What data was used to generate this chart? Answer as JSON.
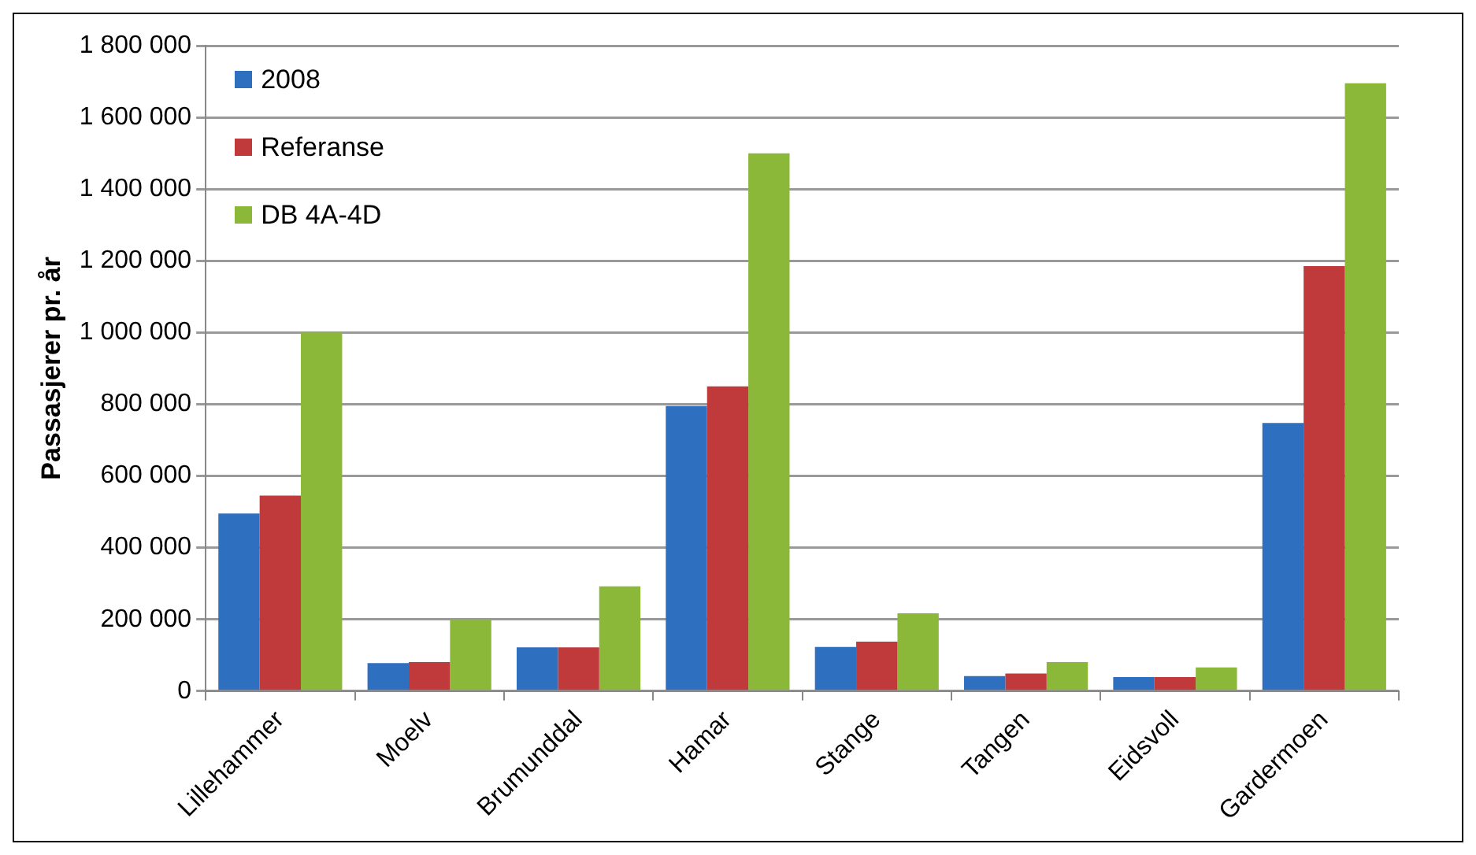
{
  "chart_data": {
    "type": "bar",
    "ylabel": "Passasjerer pr. år",
    "categories": [
      "Lillehammer",
      "Moelv",
      "Brumunddal",
      "Hamar",
      "Stange",
      "Tangen",
      "Eidsvoll",
      "Gardermoen"
    ],
    "series": [
      {
        "name": "2008",
        "color": "#2e6fc0",
        "values": [
          495000,
          78000,
          122000,
          795000,
          123000,
          42000,
          39000,
          748000
        ]
      },
      {
        "name": "Referanse",
        "color": "#c0393b",
        "values": [
          545000,
          81000,
          122000,
          850000,
          138000,
          49000,
          39000,
          1185000
        ]
      },
      {
        "name": "DB 4A-4D",
        "color": "#8cb83a",
        "values": [
          1000000,
          200000,
          292000,
          1500000,
          217000,
          81000,
          66000,
          1695000
        ]
      }
    ],
    "ylim": [
      0,
      1800000
    ],
    "yticks": [
      {
        "value": 0,
        "label": "0"
      },
      {
        "value": 200000,
        "label": "200 000"
      },
      {
        "value": 400000,
        "label": "400 000"
      },
      {
        "value": 600000,
        "label": "600 000"
      },
      {
        "value": 800000,
        "label": "800 000"
      },
      {
        "value": 1000000,
        "label": "1 000 000"
      },
      {
        "value": 1200000,
        "label": "1 200 000"
      },
      {
        "value": 1400000,
        "label": "1 400 000"
      },
      {
        "value": 1600000,
        "label": "1 600 000"
      },
      {
        "value": 1800000,
        "label": "1 800 000"
      }
    ],
    "grid": "y",
    "legend": "top left"
  }
}
